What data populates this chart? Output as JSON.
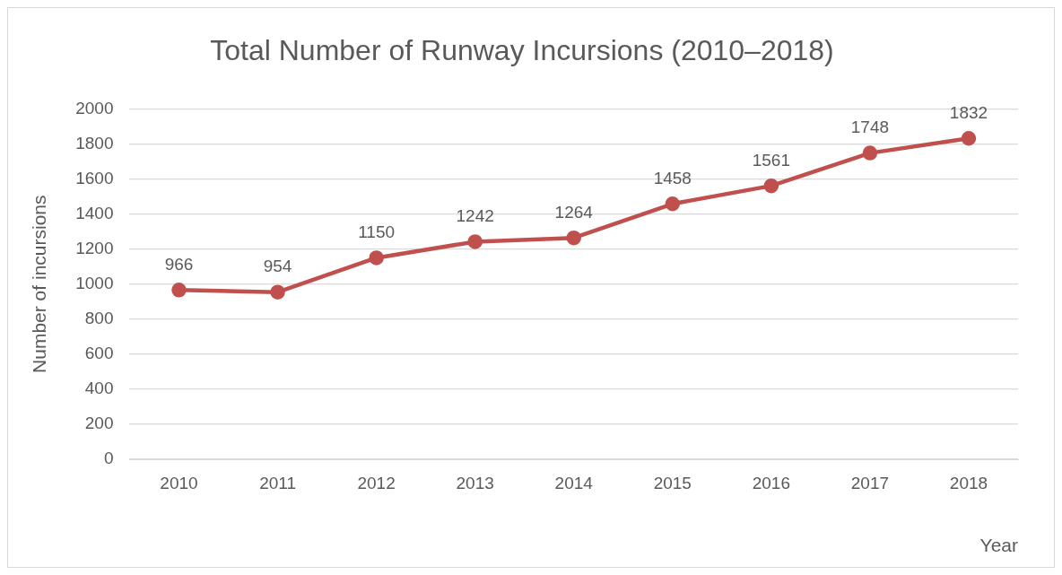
{
  "chart_data": {
    "type": "line",
    "title": "Total Number of Runway Incursions (2010–2018)",
    "xlabel": "Year",
    "ylabel": "Number of incursions",
    "categories": [
      "2010",
      "2011",
      "2012",
      "2013",
      "2014",
      "2015",
      "2016",
      "2017",
      "2018"
    ],
    "series": [
      {
        "color": "#c0504d",
        "values": [
          966,
          954,
          1150,
          1242,
          1264,
          1458,
          1561,
          1748,
          1832
        ]
      }
    ],
    "ylim": [
      0,
      2000
    ],
    "yticks": [
      0,
      200,
      400,
      600,
      800,
      1000,
      1200,
      1400,
      1600,
      1800,
      2000
    ],
    "grid": "y",
    "legend": false,
    "marker": "circle",
    "line_style": "solid",
    "data_labels": true
  }
}
